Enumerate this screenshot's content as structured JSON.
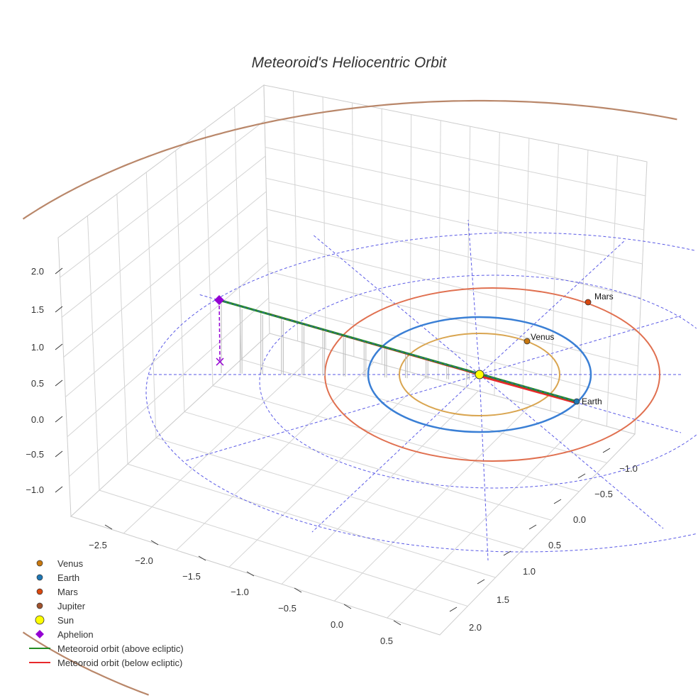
{
  "chart_data": {
    "type": "scatter3d",
    "title": "Meteoroid's Heliocentric Orbit",
    "axes": {
      "x": {
        "ticks": [
          "−2.5",
          "−2.0",
          "−1.5",
          "−1.0",
          "−0.5",
          "0.0",
          "0.5"
        ],
        "values": [
          -2.5,
          -2.0,
          -1.5,
          -1.0,
          -0.5,
          0.0,
          0.5
        ]
      },
      "y": {
        "ticks": [
          "−1.0",
          "−0.5",
          "0.0",
          "0.5",
          "1.0",
          "1.5",
          "2.0"
        ],
        "values": [
          -1.0,
          -0.5,
          0.0,
          0.5,
          1.0,
          1.5,
          2.0
        ]
      },
      "z": {
        "ticks": [
          "2.0",
          "1.5",
          "1.0",
          "0.5",
          "0.0",
          "−0.5",
          "−1.0"
        ],
        "values": [
          2.0,
          1.5,
          1.0,
          0.5,
          0.0,
          -0.5,
          -1.0
        ]
      }
    },
    "bodies": [
      {
        "name": "Venus",
        "label": "Venus",
        "orbit_radius_au": 0.72,
        "color": "#c8780f"
      },
      {
        "name": "Earth",
        "label": "Earth",
        "orbit_radius_au": 1.0,
        "color": "#1f77b4"
      },
      {
        "name": "Mars",
        "label": "Mars",
        "orbit_radius_au": 1.52,
        "color": "#d9480f"
      },
      {
        "name": "Jupiter",
        "orbit_radius_au": 5.2,
        "color": "#a0522d"
      },
      {
        "name": "Sun",
        "color": "#ffff00"
      }
    ],
    "aphelion": {
      "x": -2.6,
      "y": -0.6,
      "z": 1.6,
      "color": "#9400d3"
    },
    "legend": {
      "placement": "bottom-left",
      "entries": [
        {
          "label": "Venus",
          "marker": "circle",
          "color": "#c8780f"
        },
        {
          "label": "Earth",
          "marker": "circle",
          "color": "#1f77b4"
        },
        {
          "label": "Mars",
          "marker": "circle",
          "color": "#d9480f"
        },
        {
          "label": "Jupiter",
          "marker": "circle",
          "color": "#a0522d"
        },
        {
          "label": "Sun",
          "marker": "circle-large",
          "color": "#ffff00"
        },
        {
          "label": "Aphelion",
          "marker": "diamond",
          "color": "#9400d3"
        },
        {
          "label": "Meteoroid orbit (above ecliptic)",
          "marker": "line",
          "color": "#228b22"
        },
        {
          "label": "Meteoroid orbit (below ecliptic)",
          "marker": "line",
          "color": "#e8282b"
        }
      ]
    }
  }
}
